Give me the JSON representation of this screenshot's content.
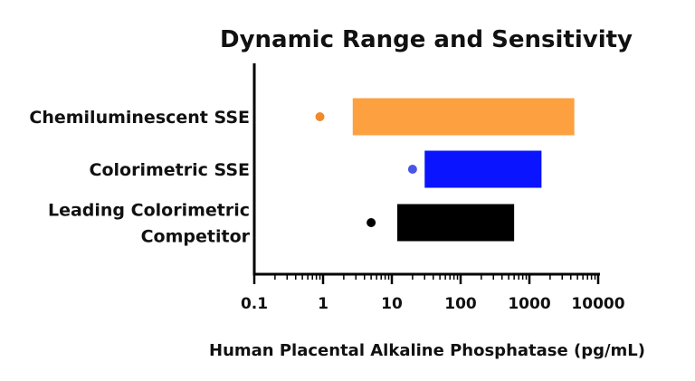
{
  "chart_data": {
    "type": "bar",
    "title": "Dynamic Range and Sensitivity",
    "xlabel": "Human Placental Alkaline Phosphatase (pg/mL)",
    "ylabel": "",
    "x_scale": "log",
    "xlim": [
      0.1,
      10000
    ],
    "x_ticks": [
      0.1,
      1,
      10,
      100,
      1000,
      10000
    ],
    "x_tick_labels": [
      "0.1",
      "1",
      "10",
      "100",
      "1000",
      "10000"
    ],
    "grid": false,
    "series": [
      {
        "category_lines": [
          "Chemiluminescent SSE"
        ],
        "range": [
          2.7,
          4500
        ],
        "detection_limit": 0.9,
        "color": "#FCA040",
        "point_color": "#F08A2A"
      },
      {
        "category_lines": [
          "Colorimetric SSE"
        ],
        "range": [
          30,
          1500
        ],
        "detection_limit": 20,
        "color": "#0A14FF",
        "point_color": "#4A55E6"
      },
      {
        "category_lines": [
          "Leading Colorimetric",
          "Competitor"
        ],
        "range": [
          12,
          600
        ],
        "detection_limit": 5,
        "color": "#000000",
        "point_color": "#000000"
      }
    ]
  }
}
